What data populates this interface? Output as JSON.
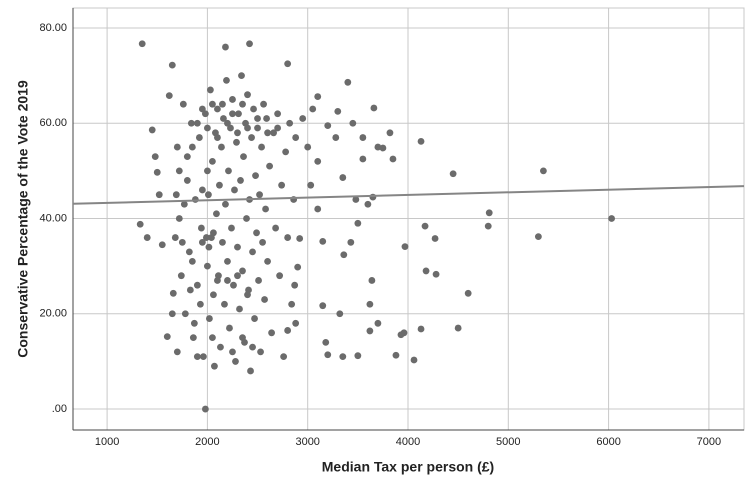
{
  "chart_data": {
    "type": "scatter",
    "x_label": "Median Tax per person (£)",
    "y_label": "Conservative Percentage of the Vote 2019",
    "xlim": [
      660,
      7350
    ],
    "xticks": [
      1000,
      2000,
      3000,
      4000,
      5000,
      6000,
      7000
    ],
    "ylim": [
      -4.4,
      84.2
    ],
    "yticks": [
      {
        "value": 0,
        "label": ".00"
      },
      {
        "value": 20,
        "label": "20.00"
      },
      {
        "value": 40,
        "label": "40.00"
      },
      {
        "value": 60,
        "label": "60.00"
      },
      {
        "value": 80,
        "label": "80.00"
      }
    ],
    "grid": true,
    "color": "#6b6b6b",
    "line_color": "#858585",
    "x": [
      1350,
      1330,
      1400,
      1450,
      1480,
      1500,
      1520,
      1550,
      1600,
      1620,
      1650,
      1660,
      1700,
      1980,
      2180,
      2420,
      2800,
      3400,
      4130,
      4450,
      5350,
      4810,
      4800,
      5300,
      6030,
      4600,
      4500,
      4130,
      4060,
      3960,
      3930,
      3880,
      4280,
      4180,
      4270,
      4170,
      3970,
      3640,
      3620,
      3700,
      3620,
      3500,
      3350,
      3200,
      3320,
      3150,
      3180,
      3430,
      3360,
      3500,
      3480,
      3600,
      3650,
      3850,
      3820,
      3660,
      3550,
      3450,
      3300,
      3200,
      3100,
      3050,
      2950,
      3030,
      3100,
      3150,
      2900,
      2880,
      2800,
      2920,
      2870,
      3550,
      3700,
      3750,
      3280,
      3350,
      3000,
      3100,
      1700,
      1720,
      1740,
      1760,
      1780,
      1800,
      1820,
      1840,
      1860,
      1880,
      1900,
      1920,
      1940,
      1960,
      1980,
      2000,
      2010,
      2020,
      2030,
      2040,
      2050,
      2060,
      2070,
      2080,
      2090,
      2100,
      2110,
      2120,
      2130,
      2140,
      2150,
      2160,
      2170,
      2180,
      2190,
      2200,
      2210,
      2220,
      2230,
      2240,
      2250,
      2260,
      2270,
      2280,
      2290,
      2300,
      2310,
      2320,
      2330,
      2340,
      2350,
      2360,
      2370,
      2380,
      2390,
      2400,
      2410,
      2420,
      2430,
      2440,
      2450,
      2460,
      2470,
      2480,
      2490,
      2500,
      2510,
      2520,
      2530,
      2540,
      2550,
      2560,
      2570,
      2580,
      2590,
      2600,
      2620,
      2640,
      2660,
      2680,
      2700,
      2720,
      2740,
      2760,
      2780,
      2800,
      2820,
      2840,
      2860,
      2880,
      1750,
      1850,
      1950,
      1990,
      2015,
      2060,
      1900,
      2000,
      2100,
      2200,
      2300,
      2400,
      2500,
      2600,
      2700,
      2250,
      2350,
      2150,
      2050,
      1950,
      1800,
      1850,
      2000,
      1950,
      2200,
      2300,
      2100,
      2400,
      2350,
      2050,
      1900,
      2250,
      2450,
      1650,
      1680,
      1690,
      1720,
      1770,
      1830,
      1870,
      1930
    ],
    "values": [
      76.7,
      38.8,
      36,
      58.6,
      53,
      49.7,
      45,
      34.5,
      15.2,
      65.8,
      72.2,
      24.3,
      12,
      0,
      76,
      76.7,
      72.5,
      68.6,
      56.2,
      49.4,
      50,
      41.2,
      38.4,
      36.2,
      40,
      24.3,
      17,
      16.8,
      10.3,
      16,
      15.6,
      11.3,
      28.3,
      29,
      35.8,
      38.4,
      34.1,
      27,
      22,
      18,
      16.4,
      11.2,
      11,
      11.4,
      20,
      21.7,
      14,
      35,
      32.4,
      39,
      44,
      43,
      44.5,
      52.5,
      58,
      63.2,
      57,
      60,
      62.5,
      59.5,
      65.6,
      63,
      61,
      47,
      42,
      35.2,
      29.8,
      18,
      16.5,
      35.8,
      26,
      52.5,
      55,
      54.8,
      57,
      48.6,
      55,
      52,
      55,
      40,
      28,
      64,
      20,
      48,
      33,
      60,
      15,
      44,
      26,
      57,
      38,
      11,
      62,
      30,
      45,
      19,
      67,
      36,
      52,
      24,
      9,
      58,
      41,
      63,
      28,
      47,
      13,
      55,
      35,
      61,
      22,
      43,
      69,
      31,
      50,
      17,
      59,
      38,
      65,
      26,
      46,
      10,
      56,
      34,
      62,
      21,
      48,
      70,
      29,
      53,
      14,
      60,
      40,
      66,
      25,
      44,
      8,
      57,
      33,
      63,
      19,
      49,
      37,
      59,
      27,
      45,
      12,
      55,
      35,
      64,
      23,
      42,
      61,
      31,
      51,
      16,
      58,
      38,
      62,
      28,
      47,
      11,
      54,
      36,
      60,
      22,
      44,
      57,
      35,
      31,
      35,
      36,
      34,
      37,
      60,
      59,
      57,
      60,
      58,
      59,
      61,
      58,
      59,
      62,
      64,
      64,
      64,
      63,
      53,
      55,
      50,
      46,
      27,
      28,
      27,
      24,
      15,
      15,
      11,
      12,
      13,
      20,
      36,
      45,
      50,
      43,
      25,
      18,
      22
    ],
    "trendline": {
      "x": [
        660,
        7350
      ],
      "y": [
        43.1,
        46.8
      ]
    }
  }
}
